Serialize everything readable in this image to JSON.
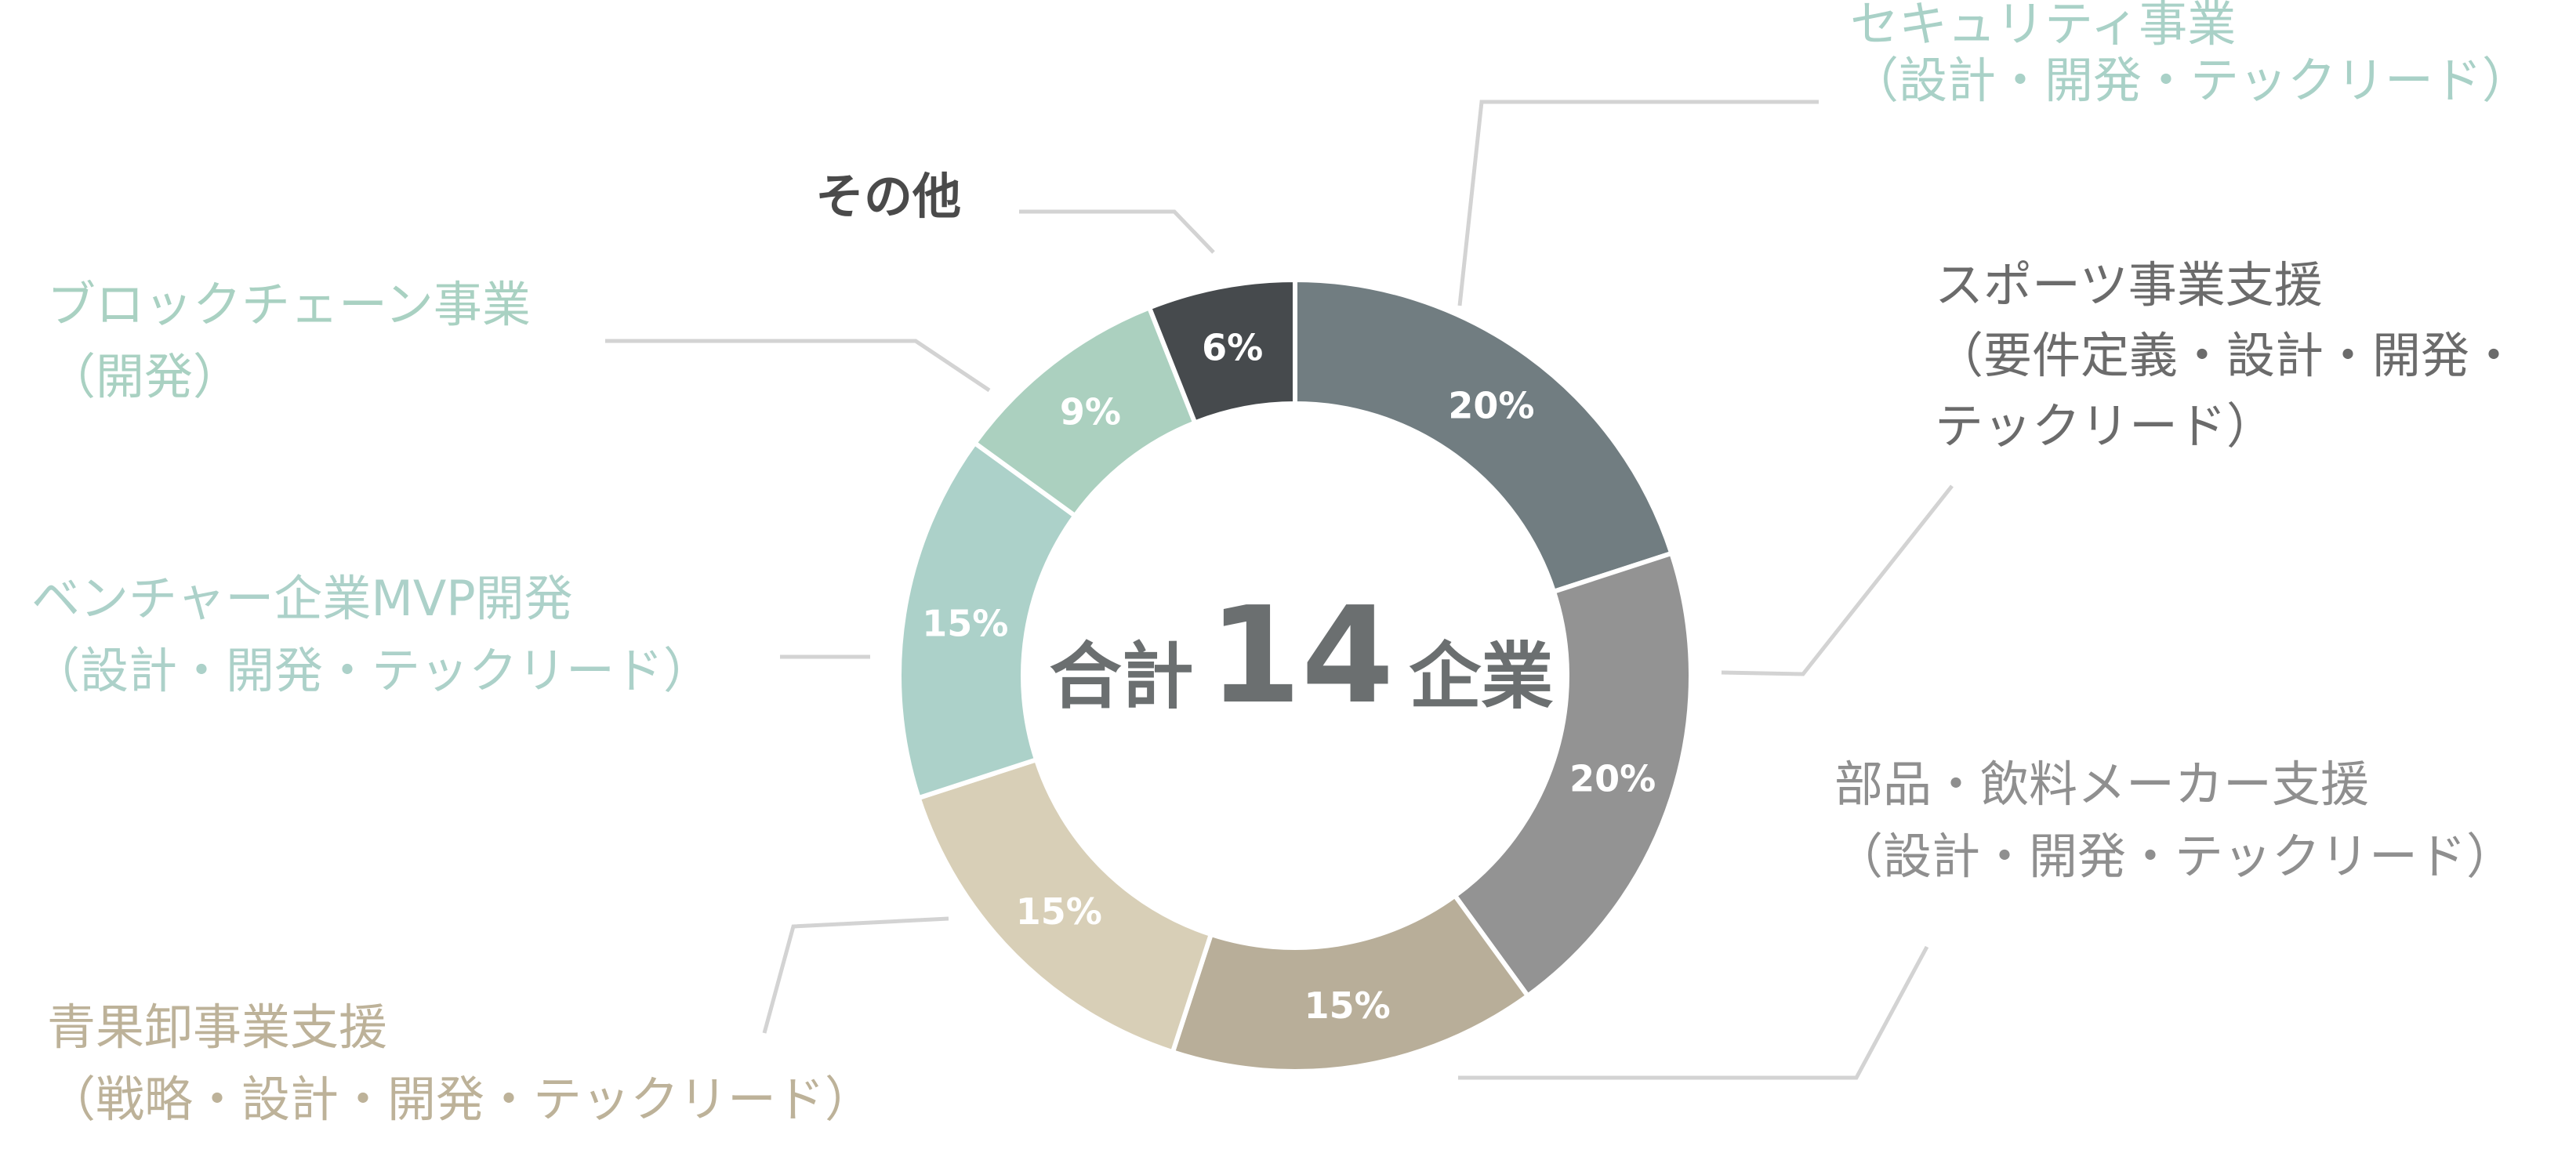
{
  "chart_data": {
    "type": "pie",
    "center_text": {
      "prefix": "合計",
      "number": "14",
      "suffix": "企業"
    },
    "slices": [
      {
        "lines": [
          "セキュリティ事業",
          "（設計・開発・テックリード）"
        ],
        "value": 20,
        "display": "20%",
        "color": "#717d81",
        "label_color": "#a9d1c7"
      },
      {
        "lines": [
          "スポーツ事業支援",
          "（要件定義・設計・開発・",
          "テックリード）"
        ],
        "value": 20,
        "display": "20%",
        "color": "#939393",
        "label_color": "#6b6b6b"
      },
      {
        "lines": [
          "部品・飲料メーカー支援",
          "（設計・開発・テックリード）"
        ],
        "value": 15,
        "display": "15%",
        "color": "#b8ae99",
        "label_color": "#8f8f8f"
      },
      {
        "lines": [
          "青果卸事業支援",
          "（戦略・設計・開発・テックリード）"
        ],
        "value": 15,
        "display": "15%",
        "color": "#d8cfb7",
        "label_color": "#bdb299"
      },
      {
        "lines": [
          "ベンチャー企業MVP開発",
          "（設計・開発・テックリード）"
        ],
        "value": 15,
        "display": "15%",
        "color": "#acd1c9",
        "label_color": "#acd1c9"
      },
      {
        "lines": [
          "ブロックチェーン事業",
          "（開発）"
        ],
        "value": 9,
        "display": "9%",
        "color": "#abd0bf",
        "label_color": "#a9d1c2"
      },
      {
        "lines": [
          "その他"
        ],
        "value": 6,
        "display": "6%",
        "color": "#464a4d",
        "label_color": "#4a4a4a"
      }
    ]
  }
}
